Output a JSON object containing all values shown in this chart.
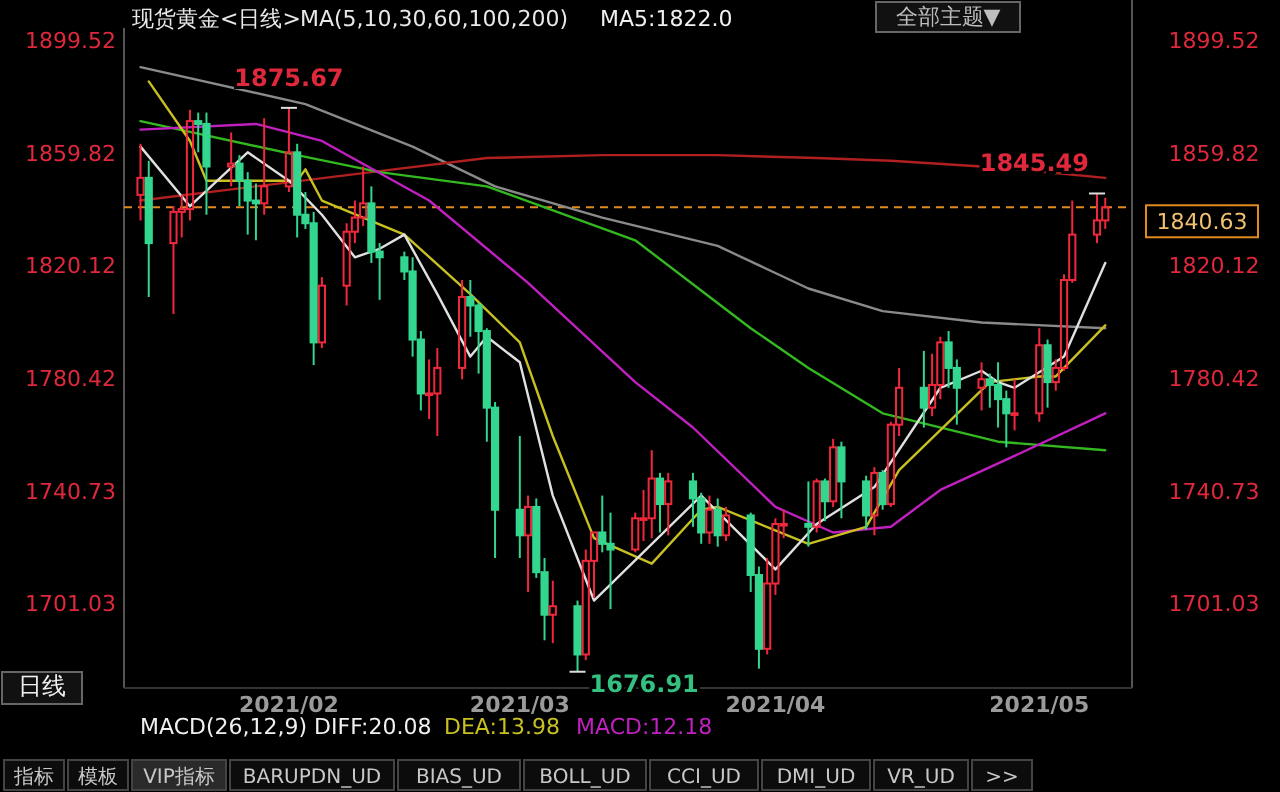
{
  "chart_data": {
    "type": "candlestick",
    "title": "现货黄金<日线>",
    "subtitle": "MA(5,10,30,60,100,200)",
    "x": [
      "2021-01-14",
      "2021-01-15",
      "2021-01-18",
      "2021-01-19",
      "2021-01-20",
      "2021-01-21",
      "2021-01-22",
      "2021-01-25",
      "2021-01-26",
      "2021-01-27",
      "2021-01-28",
      "2021-01-29",
      "2021-02-01",
      "2021-02-02",
      "2021-02-03",
      "2021-02-04",
      "2021-02-05",
      "2021-02-08",
      "2021-02-09",
      "2021-02-10",
      "2021-02-11",
      "2021-02-12",
      "2021-02-15",
      "2021-02-16",
      "2021-02-17",
      "2021-02-18",
      "2021-02-19",
      "2021-02-22",
      "2021-02-23",
      "2021-02-24",
      "2021-02-25",
      "2021-02-26",
      "2021-03-01",
      "2021-03-02",
      "2021-03-03",
      "2021-03-04",
      "2021-03-05",
      "2021-03-08",
      "2021-03-09",
      "2021-03-10",
      "2021-03-11",
      "2021-03-12",
      "2021-03-15",
      "2021-03-16",
      "2021-03-17",
      "2021-03-18",
      "2021-03-19",
      "2021-03-22",
      "2021-03-23",
      "2021-03-24",
      "2021-03-25",
      "2021-03-26",
      "2021-03-29",
      "2021-03-30",
      "2021-03-31",
      "2021-04-01",
      "2021-04-02",
      "2021-04-05",
      "2021-04-06",
      "2021-04-07",
      "2021-04-08",
      "2021-04-09",
      "2021-04-12",
      "2021-04-13",
      "2021-04-14",
      "2021-04-15",
      "2021-04-16",
      "2021-04-19",
      "2021-04-20",
      "2021-04-21",
      "2021-04-22",
      "2021-04-23",
      "2021-04-26",
      "2021-04-27",
      "2021-04-28",
      "2021-04-29",
      "2021-04-30",
      "2021-05-03",
      "2021-05-04",
      "2021-05-05",
      "2021-05-06",
      "2021-05-07",
      "2021-05-10",
      "2021-05-11"
    ],
    "ohlc": [
      [
        1845,
        1863,
        1836,
        1851
      ],
      [
        1851,
        1857,
        1809,
        1828
      ],
      [
        1828,
        1841,
        1803,
        1839
      ],
      [
        1839,
        1845,
        1830,
        1840
      ],
      [
        1840,
        1875,
        1836,
        1871
      ],
      [
        1871,
        1874,
        1860,
        1870
      ],
      [
        1870,
        1874,
        1838,
        1855
      ],
      [
        1855,
        1867,
        1848,
        1856
      ],
      [
        1856,
        1859,
        1841,
        1850
      ],
      [
        1850,
        1853,
        1831,
        1843
      ],
      [
        1843,
        1849,
        1829,
        1842
      ],
      [
        1842,
        1872,
        1838,
        1848
      ],
      [
        1848,
        1875.67,
        1846,
        1860
      ],
      [
        1860,
        1863,
        1830,
        1838
      ],
      [
        1838,
        1846,
        1833,
        1835
      ],
      [
        1835,
        1839,
        1785,
        1793
      ],
      [
        1793,
        1816,
        1791,
        1813
      ],
      [
        1813,
        1835,
        1806,
        1832
      ],
      [
        1832,
        1843,
        1828,
        1837
      ],
      [
        1837,
        1855,
        1834,
        1842
      ],
      [
        1842,
        1848,
        1821,
        1825
      ],
      [
        1825,
        1828,
        1808,
        1823
      ],
      [
        1823,
        1825,
        1815,
        1818
      ],
      [
        1818,
        1823,
        1788,
        1794
      ],
      [
        1794,
        1797,
        1769,
        1775
      ],
      [
        1775,
        1787,
        1766,
        1775
      ],
      [
        1775,
        1791,
        1760,
        1784
      ],
      [
        1784,
        1815,
        1780,
        1809
      ],
      [
        1809,
        1815,
        1795,
        1806
      ],
      [
        1806,
        1807,
        1782,
        1797
      ],
      [
        1797,
        1798,
        1758,
        1770
      ],
      [
        1770,
        1772,
        1717,
        1734
      ],
      [
        1734,
        1760,
        1717,
        1725
      ],
      [
        1725,
        1739,
        1705,
        1735
      ],
      [
        1735,
        1738,
        1710,
        1712
      ],
      [
        1712,
        1717,
        1688,
        1697
      ],
      [
        1697,
        1709,
        1687,
        1700
      ],
      [
        1700,
        1702,
        1676.91,
        1683
      ],
      [
        1683,
        1720,
        1681,
        1716
      ],
      [
        1716,
        1726,
        1703,
        1726
      ],
      [
        1726,
        1739,
        1719,
        1722
      ],
      [
        1722,
        1733,
        1699,
        1720
      ],
      [
        1720,
        1733,
        1719,
        1731
      ],
      [
        1731,
        1741,
        1723,
        1731
      ],
      [
        1731,
        1755,
        1724,
        1745
      ],
      [
        1745,
        1747,
        1726,
        1736
      ],
      [
        1736,
        1747,
        1725,
        1744
      ],
      [
        1744,
        1747,
        1728,
        1738
      ],
      [
        1738,
        1740,
        1722,
        1726
      ],
      [
        1726,
        1739,
        1722,
        1734
      ],
      [
        1734,
        1738,
        1721,
        1725
      ],
      [
        1725,
        1735,
        1723,
        1732
      ],
      [
        1732,
        1733,
        1705,
        1711
      ],
      [
        1711,
        1714,
        1678,
        1685
      ],
      [
        1685,
        1717,
        1683,
        1708
      ],
      [
        1708,
        1731,
        1704,
        1729
      ],
      [
        1729,
        1734,
        1724,
        1729
      ],
      [
        1729,
        1744,
        1721,
        1728
      ],
      [
        1728,
        1745,
        1726,
        1744
      ],
      [
        1744,
        1745,
        1730,
        1737
      ],
      [
        1737,
        1759,
        1735,
        1756
      ],
      [
        1756,
        1758,
        1731,
        1744
      ],
      [
        1744,
        1746,
        1727,
        1732
      ],
      [
        1732,
        1749,
        1725,
        1747
      ],
      [
        1747,
        1748,
        1734,
        1736
      ],
      [
        1736,
        1765,
        1735,
        1764
      ],
      [
        1764,
        1784,
        1760,
        1777
      ],
      [
        1777,
        1790,
        1763,
        1770
      ],
      [
        1770,
        1789,
        1767,
        1778
      ],
      [
        1778,
        1795,
        1773,
        1793
      ],
      [
        1793,
        1797,
        1777,
        1784
      ],
      [
        1784,
        1787,
        1764,
        1777
      ],
      [
        1777,
        1786,
        1769,
        1780
      ],
      [
        1780,
        1782,
        1770,
        1778
      ],
      [
        1778,
        1786,
        1763,
        1773
      ],
      [
        1773,
        1776,
        1756,
        1768
      ],
      [
        1768,
        1780,
        1762,
        1768
      ],
      [
        1768,
        1798,
        1765,
        1792
      ],
      [
        1792,
        1794,
        1770,
        1779
      ],
      [
        1779,
        1787,
        1776,
        1784
      ],
      [
        1784,
        1817,
        1783,
        1815
      ],
      [
        1815,
        1843,
        1814,
        1831
      ],
      [
        1831,
        1845.49,
        1828,
        1836
      ],
      [
        1836,
        1844,
        1833,
        1840.63
      ]
    ],
    "series": [
      {
        "type": "line",
        "color": "#8a8a8a",
        "x": [
          "2021-01-14",
          "2021-02-03",
          "2021-02-16",
          "2021-02-26",
          "2021-03-11",
          "2021-03-25",
          "2021-04-05",
          "2021-04-14",
          "2021-04-26",
          "2021-05-11"
        ],
        "values": [
          1890,
          1877,
          1862,
          1848,
          1837,
          1827,
          1812,
          1804,
          1800,
          1798
        ]
      },
      {
        "type": "line",
        "color": "#b02020",
        "x": [
          "2021-01-14",
          "2021-01-28",
          "2021-02-11",
          "2021-02-25",
          "2021-03-11",
          "2021-03-25",
          "2021-04-06",
          "2021-04-15",
          "2021-04-26",
          "2021-05-04",
          "2021-05-11"
        ],
        "values": [
          1843,
          1848,
          1853,
          1858,
          1859,
          1859,
          1858,
          1857,
          1855,
          1853,
          1851
        ]
      },
      {
        "type": "line",
        "color": "#33b820",
        "x": [
          "2021-01-14",
          "2021-02-02",
          "2021-02-12",
          "2021-02-25",
          "2021-03-15",
          "2021-03-29",
          "2021-04-05",
          "2021-04-14",
          "2021-04-28",
          "2021-05-11"
        ],
        "values": [
          1871,
          1859,
          1853,
          1848,
          1829,
          1798,
          1784,
          1768,
          1758,
          1755
        ]
      },
      {
        "type": "line",
        "color": "#c020c0",
        "x": [
          "2021-01-14",
          "2021-01-28",
          "2021-02-05",
          "2021-02-18",
          "2021-03-02",
          "2021-03-15",
          "2021-03-22",
          "2021-04-01",
          "2021-04-08",
          "2021-04-15",
          "2021-04-21",
          "2021-04-30",
          "2021-05-11"
        ],
        "values": [
          1868,
          1870,
          1864,
          1843,
          1814,
          1779,
          1763,
          1735,
          1726,
          1728,
          1741,
          1753,
          1768
        ]
      },
      {
        "type": "line",
        "color": "#c8c020",
        "x": [
          "2021-01-15",
          "2021-01-20",
          "2021-01-22",
          "2021-02-02",
          "2021-02-03",
          "2021-02-05",
          "2021-02-15",
          "2021-02-23",
          "2021-03-01",
          "2021-03-05",
          "2021-03-10",
          "2021-03-17",
          "2021-03-23",
          "2021-03-25",
          "2021-04-05",
          "2021-04-12",
          "2021-04-16",
          "2021-04-27",
          "2021-05-03",
          "2021-05-05",
          "2021-05-11"
        ],
        "values": [
          1885,
          1864,
          1850,
          1850,
          1854,
          1843,
          1831,
          1810,
          1793,
          1760,
          1724,
          1715,
          1734,
          1735,
          1722,
          1728,
          1748,
          1779,
          1781,
          1781,
          1799
        ]
      },
      {
        "type": "line",
        "color": "#e0e0e0",
        "x": [
          "2021-01-14",
          "2021-01-20",
          "2021-01-27",
          "2021-02-01",
          "2021-02-05",
          "2021-02-09",
          "2021-02-12",
          "2021-02-15",
          "2021-02-19",
          "2021-02-23",
          "2021-02-25",
          "2021-03-01",
          "2021-03-05",
          "2021-03-10",
          "2021-03-23",
          "2021-04-01",
          "2021-04-06",
          "2021-04-13",
          "2021-04-21",
          "2021-04-26",
          "2021-04-28",
          "2021-04-30",
          "2021-05-06",
          "2021-05-11"
        ],
        "values": [
          1862,
          1841,
          1860,
          1850,
          1838,
          1823,
          1826,
          1831,
          1810,
          1788,
          1795,
          1786,
          1739,
          1702,
          1739,
          1713,
          1729,
          1742,
          1777,
          1783,
          1779,
          1777,
          1788,
          1821
        ]
      }
    ],
    "xlim": [
      "2021-01-12",
      "2021-05-14"
    ],
    "xticks": [
      {
        "value": "2021-02-01",
        "label": "2021/02"
      },
      {
        "value": "2021-03-01",
        "label": "2021/03"
      },
      {
        "value": "2021-04-01",
        "label": "2021/04"
      },
      {
        "value": "2021-05-03",
        "label": "2021/05"
      }
    ],
    "ylim": [
      1674,
      1901
    ],
    "yticks": [
      1899.52,
      1859.82,
      1820.12,
      1780.42,
      1740.73,
      1701.03
    ],
    "y2lim": [
      1674,
      1901
    ],
    "y2ticks": [
      1899.52,
      1859.82,
      1820.12,
      1780.42,
      1740.73,
      1701.03
    ],
    "ref_lines": [
      {
        "axis": "y",
        "value": 1840.63,
        "label": "1840.63",
        "color": "#e08a20",
        "line_style": "dashed"
      }
    ],
    "annotations": [
      {
        "text": "1875.67",
        "x": "2021-02-01",
        "y": 1875.67
      },
      {
        "text": "1676.91",
        "x": "2021-03-08",
        "y": 1676.91
      },
      {
        "text": "1845.49",
        "x": "2021-05-10",
        "y": 1845.49
      },
      "全部主题▼",
      "MA5:1822.0",
      "日线",
      "MACD(26,12,9) DIFF:20.08",
      "DEA:13.98",
      "MACD:12.18",
      "指标",
      "模板",
      "VIP指标",
      "BARUPDN_UD",
      "BIAS_UD",
      "BOLL_UD",
      "CCI_UD",
      "DMI_UD",
      "VR_UD",
      ">>"
    ]
  }
}
